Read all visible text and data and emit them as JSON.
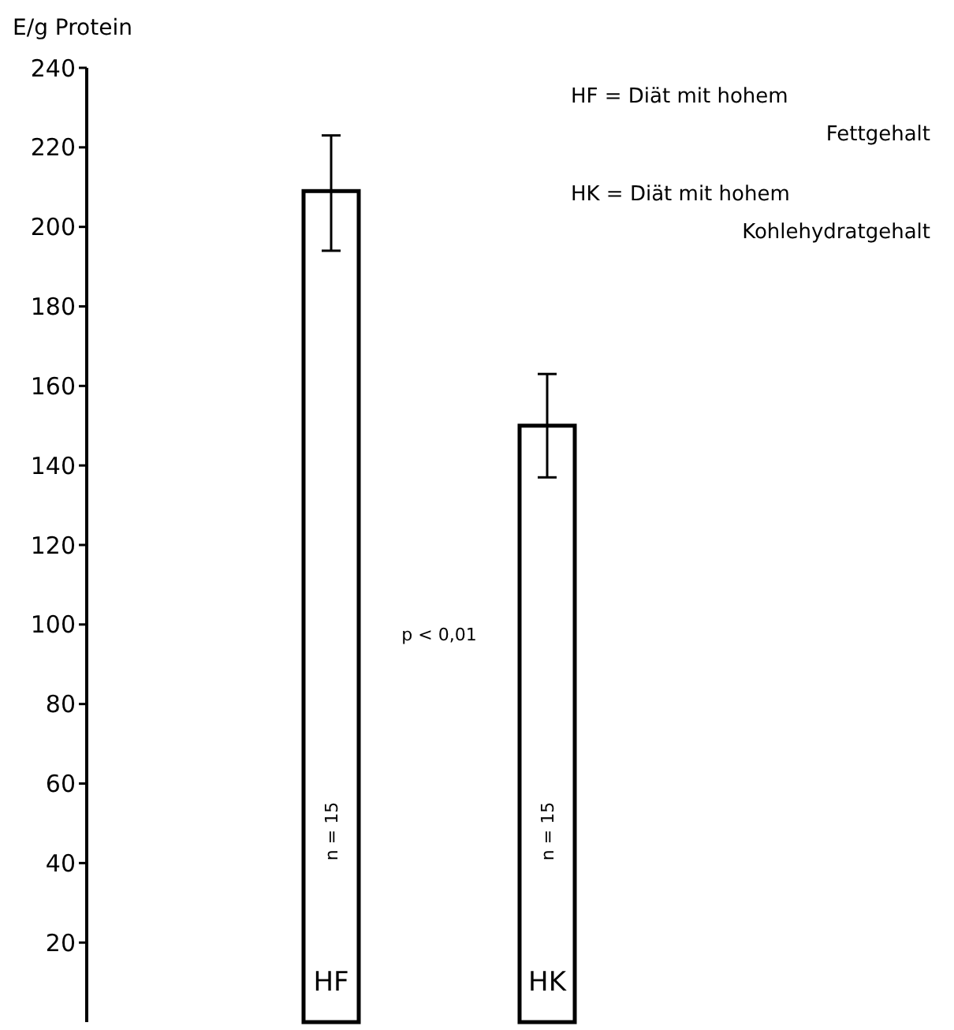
{
  "chart_data": {
    "type": "bar",
    "ylabel": "E/g Protein",
    "categories": [
      "HF",
      "HK"
    ],
    "values": [
      209,
      150
    ],
    "errors": [
      [
        194,
        223
      ],
      [
        137,
        163
      ]
    ],
    "color": "#ffffff",
    "ylim": [
      0,
      240
    ],
    "yticks": [
      20,
      40,
      60,
      80,
      100,
      120,
      140,
      160,
      180,
      200,
      220,
      240
    ],
    "annotations": [
      "HF = Diät mit hohem\nFettgehalt",
      "HK = Diät mit hohem\nKohlehydratgehalt",
      "n = 15",
      "n = 15",
      "p < 0,01"
    ],
    "grid": false
  }
}
